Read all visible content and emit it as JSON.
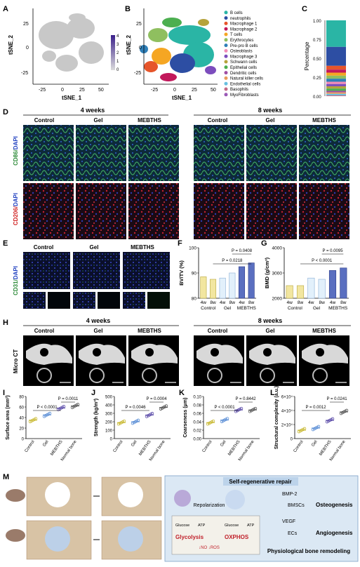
{
  "panels": {
    "A": "A",
    "B": "B",
    "C": "C",
    "D": "D",
    "E": "E",
    "F": "F",
    "G": "G",
    "H": "H",
    "I": "I",
    "J": "J",
    "K": "K",
    "L": "L",
    "M": "M"
  },
  "tsne": {
    "xlabel": "tSNE_1",
    "ylabel": "tSNE_2",
    "xticks": [
      "-25",
      "0",
      "25",
      "50"
    ],
    "yticks": [
      "-25",
      "0",
      "25"
    ],
    "colorbar_ticks": [
      "4",
      "3",
      "2",
      "1",
      "0"
    ]
  },
  "legend_b": [
    {
      "label": "B cells",
      "color": "#2ab5a5"
    },
    {
      "label": "neutrophils",
      "color": "#2d4ea3"
    },
    {
      "label": "Macrophage 1",
      "color": "#e6552a"
    },
    {
      "label": "Macrophage 2",
      "color": "#c2185b"
    },
    {
      "label": "T cells",
      "color": "#f5a623"
    },
    {
      "label": "Erythrocytes",
      "color": "#8fbf5f"
    },
    {
      "label": "Pre-pro B cells",
      "color": "#2f7fb8"
    },
    {
      "label": "Osteoblasts",
      "color": "#f28bb6"
    },
    {
      "label": "Macrophage 3",
      "color": "#7c4dbd"
    },
    {
      "label": "Schwann cells",
      "color": "#b5a33b"
    },
    {
      "label": "Epithelial cells",
      "color": "#4caf50"
    },
    {
      "label": "Dendritic cells",
      "color": "#a04da3"
    },
    {
      "label": "Natural killer cells",
      "color": "#e89c5c"
    },
    {
      "label": "Endothelial cells",
      "color": "#66bfe0"
    },
    {
      "label": "Basophils",
      "color": "#c46b86"
    },
    {
      "label": "MyoFibroblasts",
      "color": "#9b59b6"
    }
  ],
  "chart_data": [
    {
      "panel": "C",
      "type": "bar",
      "ylabel": "Percentage",
      "yticks": [
        "1.00",
        "0.75",
        "0.50",
        "0.25",
        "0.00"
      ],
      "stack_fractions": [
        0.35,
        0.25,
        0.05,
        0.04,
        0.04,
        0.04,
        0.04,
        0.03,
        0.03,
        0.03,
        0.03,
        0.02,
        0.02,
        0.02,
        0.01,
        0.0
      ]
    },
    {
      "panel": "F",
      "type": "bar",
      "ylabel": "BV/TV (%)",
      "ylim": [
        80,
        100
      ],
      "yticks": [
        "100",
        "90",
        "80"
      ],
      "categories": [
        "4w",
        "8w",
        "4w",
        "8w",
        "4w",
        "8w"
      ],
      "groups": [
        "Control",
        "Gel",
        "MEBTHS"
      ],
      "values": [
        88.5,
        87.5,
        88.0,
        90.0,
        92.5,
        94.0
      ],
      "annotations": [
        "P = 0.0408",
        "P = 0.0218"
      ]
    },
    {
      "panel": "G",
      "type": "bar",
      "ylabel": "BMD (g/cm³)",
      "ylim": [
        2000,
        4000
      ],
      "yticks": [
        "4000",
        "3000",
        "2000"
      ],
      "categories": [
        "4w",
        "8w",
        "4w",
        "8w",
        "4w",
        "8w"
      ],
      "groups": [
        "Control",
        "Gel",
        "MEBTHS"
      ],
      "values": [
        2500,
        2500,
        2800,
        2750,
        3100,
        3200
      ],
      "annotations": [
        "P = 0.0095",
        "P < 0.0001"
      ]
    },
    {
      "panel": "I",
      "type": "scatter",
      "ylabel": "Surface area (mm²)",
      "ylim": [
        0,
        80
      ],
      "yticks": [
        "80",
        "60",
        "40",
        "20",
        "0"
      ],
      "categories": [
        "Control",
        "Gel",
        "MEBTHS",
        "Normal bone"
      ],
      "means": [
        35,
        45,
        58,
        62
      ],
      "annotations": [
        "P = 0.0011",
        "P < 0.0001"
      ]
    },
    {
      "panel": "J",
      "type": "scatter",
      "ylabel": "Strength (kg/m³)",
      "ylim": [
        0,
        500
      ],
      "yticks": [
        "500",
        "400",
        "300",
        "200",
        "100",
        "0"
      ],
      "categories": [
        "Control",
        "Gel",
        "MEBTHS",
        "Normal bone"
      ],
      "means": [
        190,
        200,
        280,
        370
      ],
      "annotations": [
        "P = 0.0004",
        "P = 0.0046"
      ]
    },
    {
      "panel": "K",
      "type": "scatter",
      "ylabel": "Coarseness (μm)",
      "ylim": [
        0,
        0.1
      ],
      "yticks": [
        "0.10",
        "0.08",
        "0.06",
        "0.04",
        "0.02",
        "0.00"
      ],
      "categories": [
        "Control",
        "Gel",
        "MEBTHS",
        "Normal bone"
      ],
      "means": [
        0.038,
        0.044,
        0.068,
        0.068
      ],
      "annotations": [
        "P = 0.8442",
        "P < 0.0001"
      ]
    },
    {
      "panel": "L",
      "type": "scatter",
      "ylabel": "Structural complexity (a.u.)",
      "ylim": [
        0,
        60000
      ],
      "yticks": [
        "6×10⁴",
        "4×10⁴",
        "2×10⁴",
        "0"
      ],
      "categories": [
        "Control",
        "Gel",
        "MEBTHS",
        "Normal bone"
      ],
      "means": [
        12000,
        15000,
        26000,
        38000
      ],
      "annotations": [
        "P = 0.0241",
        "P = 0.0012"
      ]
    }
  ],
  "histology": {
    "week4": "4 weeks",
    "week8": "8 weeks",
    "cols": [
      "Control",
      "Gel",
      "MEBTHS"
    ],
    "cd86": "CD86/",
    "cd206": "CD206/",
    "dapi": "DAPI",
    "cd31": "CD31/",
    "microct": "Micro CT"
  },
  "schematic": {
    "title": "Self-regenerative repair",
    "repolarization": "Repolarization",
    "bmp2": "BMP-2",
    "bmscs": "BMSCs",
    "osteogenesis": "Osteogenesis",
    "vegf": "VEGF",
    "ecs": "ECs",
    "angiogenesis": "Angiogenesis",
    "glycolysis": "Glycolysis",
    "oxphos": "OXPHOS",
    "no_ros": "↓NO\n↓ROS",
    "glucose1": "Glucose",
    "glucose2": "Glucose",
    "atp1": "ATP",
    "atp2": "ATP",
    "remodeling": "Physiological bone remodeling"
  }
}
